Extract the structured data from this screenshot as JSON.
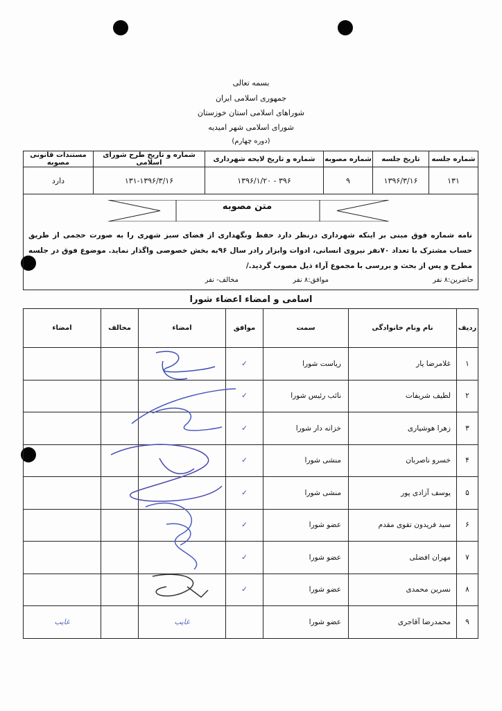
{
  "header": {
    "lines": [
      "بسمه تعالی",
      "جمهوری اسلامی ایران",
      "شوراهای اسلامی استان خوزستان",
      "شورای اسلامی شهر امیدیه",
      "(دوره چهارم)"
    ]
  },
  "session_table": {
    "headers": [
      "شماره جلسه",
      "تاریخ جلسه",
      "شماره مصوبه",
      "شماره و تاریخ  لایحه شهرداری",
      "شماره و تاریخ طرح شورای اسلامی",
      "مستندات قانونی مصوبه"
    ],
    "values": [
      "۱۳۱",
      "۱۳۹۶/۳/۱۶",
      "۹",
      "۳۹۶ - ۱۳۹۶/۱/۲۰",
      "۱۳۱-۱۳۹۶/۳/۱۶",
      "دارد"
    ]
  },
  "resolution": {
    "title": "متن مصوبه",
    "text": "نامه شماره فوق مبنی بر اینکه شهرداری درنظر دارد حفظ ونگهداری از فضای سبز شهری را به صورت حجمی از طریق حساب مشترک با تعداد ۷۰نفر نیروی انسانی، ادوات وابزار رادر سال ۹۶به بخش خصوصی واگذار نماید. موضوع فوق در جلسه مطرح و پس از بحث و بررسی با مجموع آراء ذیل مصوب گردید./",
    "present": "حاضرین:۸ نفر",
    "agree": "موافق:۸ نفر",
    "oppose": "مخالف- نفر"
  },
  "members_table": {
    "title": "اسامی و امضاء اعضاء شورا",
    "headers": [
      "ردیف",
      "نام ونام خانوادگی",
      "سمت",
      "موافق",
      "امضاء",
      "مخالف",
      "امضاء"
    ],
    "rows": [
      {
        "n": "۱",
        "name": "غلامرضا یار",
        "role": "ریاست شورا",
        "agree": "✓",
        "sign": "",
        "oppose": "",
        "sign2": ""
      },
      {
        "n": "۲",
        "name": "لطیف شریفات",
        "role": "نائب رئیس شورا",
        "agree": "✓",
        "sign": "",
        "oppose": "",
        "sign2": ""
      },
      {
        "n": "۳",
        "name": "زهرا هوشیاری",
        "role": "خزانه دار شورا",
        "agree": "✓",
        "sign": "",
        "oppose": "",
        "sign2": ""
      },
      {
        "n": "۴",
        "name": "خسرو ناصربان",
        "role": "منشی شورا",
        "agree": "✓",
        "sign": "",
        "oppose": "",
        "sign2": ""
      },
      {
        "n": "۵",
        "name": "یوسف آزادی پور",
        "role": "منشی شورا",
        "agree": "✓",
        "sign": "",
        "oppose": "",
        "sign2": ""
      },
      {
        "n": "۶",
        "name": "سید فریدون تقوی مقدم",
        "role": "عضو شورا",
        "agree": "✓",
        "sign": "",
        "oppose": "",
        "sign2": ""
      },
      {
        "n": "۷",
        "name": "مهران افضلی",
        "role": "عضو شورا",
        "agree": "✓",
        "sign": "",
        "oppose": "",
        "sign2": ""
      },
      {
        "n": "۸",
        "name": "نسرین محمدی",
        "role": "عضو شورا",
        "agree": "✓",
        "sign": "",
        "oppose": "",
        "sign2": ""
      },
      {
        "n": "۹",
        "name": "محمدرضا آقاجری",
        "role": "عضو شورا",
        "agree": "",
        "sign": "غایب",
        "oppose": "",
        "sign2": "غایب"
      }
    ]
  },
  "colors": {
    "ink": "#3a4bb0",
    "text": "#111111"
  }
}
